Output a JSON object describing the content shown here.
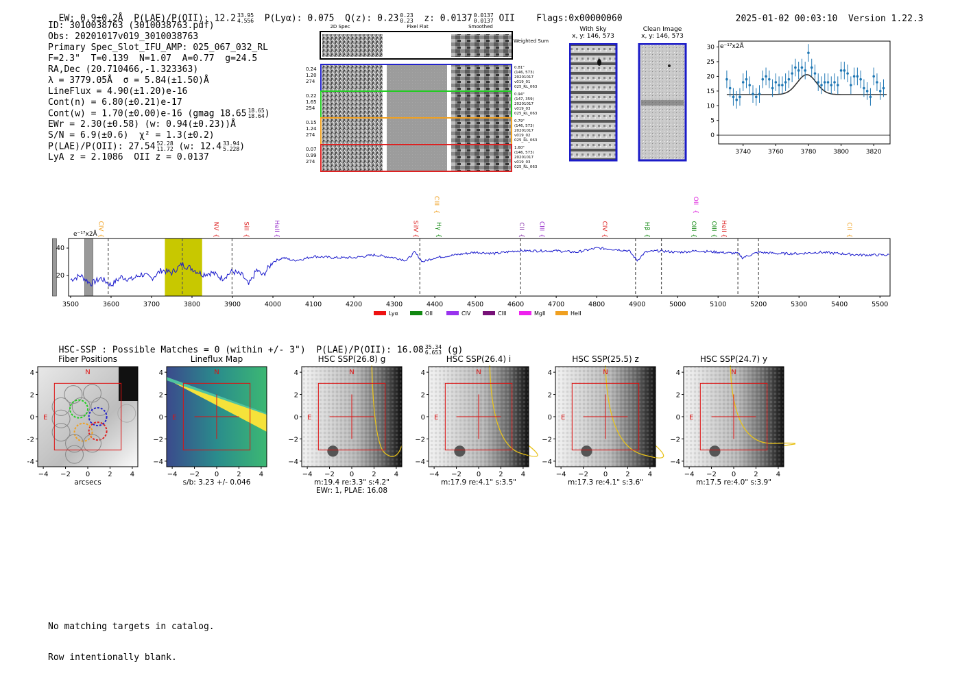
{
  "header": {
    "ew": "EW: 0.9±0.2Å",
    "plae_label": "P(LAE)/P(OII): 12.2",
    "plae_hi": "33.95",
    "plae_lo": "4.556",
    "plya": "P(Lyα): 0.075",
    "qz": "Q(z): 0.23",
    "qz_hi": "0.23",
    "qz_lo": "0.23",
    "z": "z: 0.0137",
    "z_hi": "0.0137",
    "z_lo": "0.0137",
    "z_line": "OII",
    "flags": "Flags:0x00000060",
    "timestamp": "2025-01-02 00:03:10",
    "version": "Version 1.22.3"
  },
  "info": {
    "id": "ID: 3010038763 (3010038763.pdf)",
    "obs": "Obs: 20201017v019_3010038763",
    "primary": "Primary Spec_Slot_IFU_AMP: 025_067_032_RL",
    "fit": "F=2.3\"  T=0.139  N=1.07  A=0.77  g=24.5",
    "radec": "RA,Dec (20.710466,-1.323363)",
    "lambda": "λ = 3779.05Å  σ = 5.84(±1.50)Å",
    "lineflux": "LineFlux = 4.90(±1.20)e-16",
    "contn": "Cont(n) = 6.80(±0.21)e-17",
    "contw": "Cont(w) = 1.70(±0.00)e-16 (gmag 18.65",
    "contw_hi": "18.65",
    "contw_lo": "18.64",
    "ewr": "EWr = 2.30(±0.58) (w: 0.94(±0.23))Å",
    "sn": "S/N = 6.9(±0.6)  χ² = 1.3(±0.2)",
    "plae2": "P(LAE)/P(OII): 27.54",
    "plae2_hi": "52.28",
    "plae2_lo": "11.72",
    "plae2_w": "(w: 12.4",
    "plae2_w_hi": "33.94",
    "plae2_w_lo": "5.228",
    "lyaz": "LyA z = 2.1086  OII z = 0.0137"
  },
  "cutouts": {
    "col_headers": [
      "2D Spec",
      "Pixel Flat",
      "Smoothed"
    ],
    "weighted_label": "Weighted Sum",
    "rows": [
      {
        "left": [
          "0.24",
          "1.20",
          "274"
        ],
        "right": [
          "0.81\"",
          "(146, 573)",
          "20201017",
          "v019_01",
          "025_RL_063"
        ],
        "color": "#2222cc"
      },
      {
        "left": [
          "0.22",
          "1.65",
          "254"
        ],
        "right": [
          "0.94\"",
          "(147, 359)",
          "20201017",
          "v019_03",
          "025_RL_063"
        ],
        "color": "#22cc22"
      },
      {
        "left": [
          "0.15",
          "1.24",
          "274"
        ],
        "right": [
          "0.79\"",
          "(146, 573)",
          "20201017",
          "v019_02",
          "025_RL_063"
        ],
        "color": "#f0a020"
      },
      {
        "left": [
          "0.07",
          "0.99",
          "274"
        ],
        "right": [
          "1.60\"",
          "(146, 573)",
          "20201017",
          "v019_03",
          "025_RL_063"
        ],
        "color": "#dd2222"
      }
    ],
    "with_sky_title": "With Sky",
    "with_sky_coords": "x, y: 146, 573",
    "clean_title": "Clean Image",
    "clean_coords": "x, y: 146, 573"
  },
  "zoom_chart": {
    "type": "scatter",
    "ylabel": "e⁻¹⁷x2Å",
    "xlim": [
      3725,
      3830
    ],
    "ylim": [
      -3,
      32
    ],
    "xticks": [
      3740,
      3760,
      3780,
      3800,
      3820
    ],
    "yticks": [
      0,
      5,
      10,
      15,
      20,
      25,
      30
    ],
    "points_x": [
      3730,
      3732,
      3734,
      3736,
      3738,
      3740,
      3742,
      3744,
      3746,
      3748,
      3750,
      3752,
      3754,
      3756,
      3758,
      3760,
      3762,
      3764,
      3766,
      3768,
      3770,
      3772,
      3774,
      3776,
      3778,
      3780,
      3782,
      3784,
      3786,
      3788,
      3790,
      3792,
      3794,
      3796,
      3798,
      3800,
      3802,
      3804,
      3806,
      3808,
      3810,
      3812,
      3814,
      3816,
      3818,
      3820,
      3822,
      3824,
      3826
    ],
    "points_y": [
      19,
      16,
      13,
      12,
      13,
      18,
      19,
      17,
      14,
      13,
      14,
      19,
      20,
      19,
      16,
      18,
      17,
      17,
      18,
      19,
      21,
      23,
      22,
      23,
      22,
      28,
      23,
      21,
      18,
      17,
      18,
      18,
      17,
      18,
      17,
      22,
      22,
      21,
      17,
      20,
      20,
      19,
      16,
      15,
      13,
      20,
      18,
      15,
      16
    ],
    "yerr": 3,
    "model_base": 13.8,
    "model_amp": 6.8,
    "model_center": 3779,
    "model_sigma": 5.8
  },
  "spectrum": {
    "type": "line",
    "ylabel": "e⁻¹⁷x2Å",
    "xlim": [
      3495,
      5525
    ],
    "ylim": [
      5,
      47
    ],
    "xticks": [
      3500,
      3600,
      3700,
      3800,
      3900,
      4000,
      4100,
      4200,
      4300,
      4400,
      4500,
      4600,
      4700,
      4800,
      4900,
      5000,
      5100,
      5200,
      5300,
      5400,
      5500
    ],
    "yticks": [
      20,
      40
    ],
    "x": [
      3500,
      3525,
      3550,
      3575,
      3600,
      3625,
      3650,
      3675,
      3700,
      3725,
      3750,
      3775,
      3800,
      3825,
      3850,
      3875,
      3900,
      3925,
      3940,
      3960,
      3975,
      4000,
      4025,
      4050,
      4075,
      4100,
      4150,
      4200,
      4250,
      4300,
      4330,
      4350,
      4370,
      4400,
      4450,
      4500,
      4550,
      4600,
      4650,
      4700,
      4750,
      4800,
      4850,
      4880,
      4900,
      4920,
      4950,
      5000,
      5050,
      5100,
      5150,
      5160,
      5200,
      5250,
      5300,
      5350,
      5400,
      5450,
      5500,
      5525
    ],
    "y": [
      17,
      20,
      14,
      18,
      13,
      19,
      17,
      21,
      18,
      24,
      22,
      28,
      25,
      21,
      22,
      18,
      23,
      20,
      13,
      24,
      20,
      30,
      33,
      31,
      32,
      34,
      33,
      33,
      35,
      33,
      31,
      37,
      30,
      33,
      35,
      37,
      36,
      38,
      38,
      38,
      37,
      40,
      39,
      38,
      31,
      37,
      38,
      37,
      38,
      37,
      36,
      33,
      37,
      36,
      36,
      37,
      36,
      35,
      35,
      35
    ],
    "highlight_band": [
      3733,
      3825
    ],
    "shaded_regions": [
      [
        3535,
        3555
      ],
      [
        3455,
        3465
      ]
    ],
    "dashed_lines": [
      3593,
      3776,
      3899,
      4363,
      4612,
      4896,
      4960,
      5149,
      5200
    ],
    "annotations": [
      {
        "label": "CIV",
        "x": 3570,
        "color": "#f0a020",
        "level": "low"
      },
      {
        "label": "NV",
        "x": 3855,
        "color": "#dd2222",
        "level": "low"
      },
      {
        "label": "SiII",
        "x": 3930,
        "color": "#dd2222",
        "level": "low"
      },
      {
        "label": "HeII",
        "x": 4005,
        "color": "#9933cc",
        "level": "low"
      },
      {
        "label": "SiIV",
        "x": 4348,
        "color": "#dd2222",
        "level": "low"
      },
      {
        "label": "CIII",
        "x": 4400,
        "color": "#f0a020",
        "level": "high"
      },
      {
        "label": "Hγ",
        "x": 4405,
        "color": "#118811",
        "level": "low"
      },
      {
        "label": "CII",
        "x": 4610,
        "color": "#8833aa",
        "level": "low"
      },
      {
        "label": "CIII",
        "x": 4660,
        "color": "#9933cc",
        "level": "low"
      },
      {
        "label": "CIV",
        "x": 4815,
        "color": "#dd2222",
        "level": "low"
      },
      {
        "label": "Hβ",
        "x": 4920,
        "color": "#118811",
        "level": "low"
      },
      {
        "label": "OIII",
        "x": 5035,
        "color": "#118811",
        "level": "low"
      },
      {
        "label": "OII",
        "x": 5040,
        "color": "#dd22dd",
        "level": "high"
      },
      {
        "label": "OIII",
        "x": 5085,
        "color": "#118811",
        "level": "low"
      },
      {
        "label": "HeII",
        "x": 5110,
        "color": "#dd2222",
        "level": "low"
      },
      {
        "label": "CII",
        "x": 5420,
        "color": "#f0a020",
        "level": "low"
      }
    ],
    "legend": [
      {
        "label": "Lyα",
        "color": "#ee1111"
      },
      {
        "label": "OII",
        "color": "#118811"
      },
      {
        "label": "CIV",
        "color": "#9933ee"
      },
      {
        "label": "CIII",
        "color": "#771177"
      },
      {
        "label": "MgII",
        "color": "#ee22ee"
      },
      {
        "label": "HeII",
        "color": "#f0a020"
      }
    ]
  },
  "hsc": {
    "heading": "HSC-SSP : Possible Matches = 0 (within +/- 3\")  P(LAE)/P(OII): 16.08",
    "heading_hi": "35.34",
    "heading_lo": "6.653",
    "heading_band": "(g)",
    "xticks": [
      "−4",
      "−2",
      "0",
      "2",
      "4"
    ],
    "yticks": [
      "4",
      "2",
      "0",
      "−2",
      "−4"
    ],
    "panels": [
      {
        "title": "Fiber Positions",
        "caption": "arcsecs",
        "caption2": ""
      },
      {
        "title": "Lineflux Map",
        "caption": "s/b: 3.23 +/- 0.046",
        "caption2": ""
      },
      {
        "title": "HSC SSP(26.8) g",
        "caption": "m:19.4  re:3.3\"  s:4.2\"",
        "caption2": "EWr: 1, PLAE: 16.08"
      },
      {
        "title": "HSC SSP(26.4) i",
        "caption": "m:17.9  re:4.1\"  s:3.5\"",
        "caption2": ""
      },
      {
        "title": "HSC SSP(25.5) z",
        "caption": "m:17.3  re:4.1\"  s:3.6\"",
        "caption2": ""
      },
      {
        "title": "HSC SSP(24.7) y",
        "caption": "m:17.5  re:4.0\"  s:3.9\"",
        "caption2": ""
      }
    ],
    "compass_n": "N",
    "compass_e": "E"
  },
  "footer": {
    "line1": "No matching targets in catalog.",
    "line2": "Row intentionally blank."
  },
  "colors": {
    "spectrum_line": "#1a1acc",
    "band_highlight": "#c8c800",
    "marker": "#1f77b4",
    "model": "#333333"
  }
}
